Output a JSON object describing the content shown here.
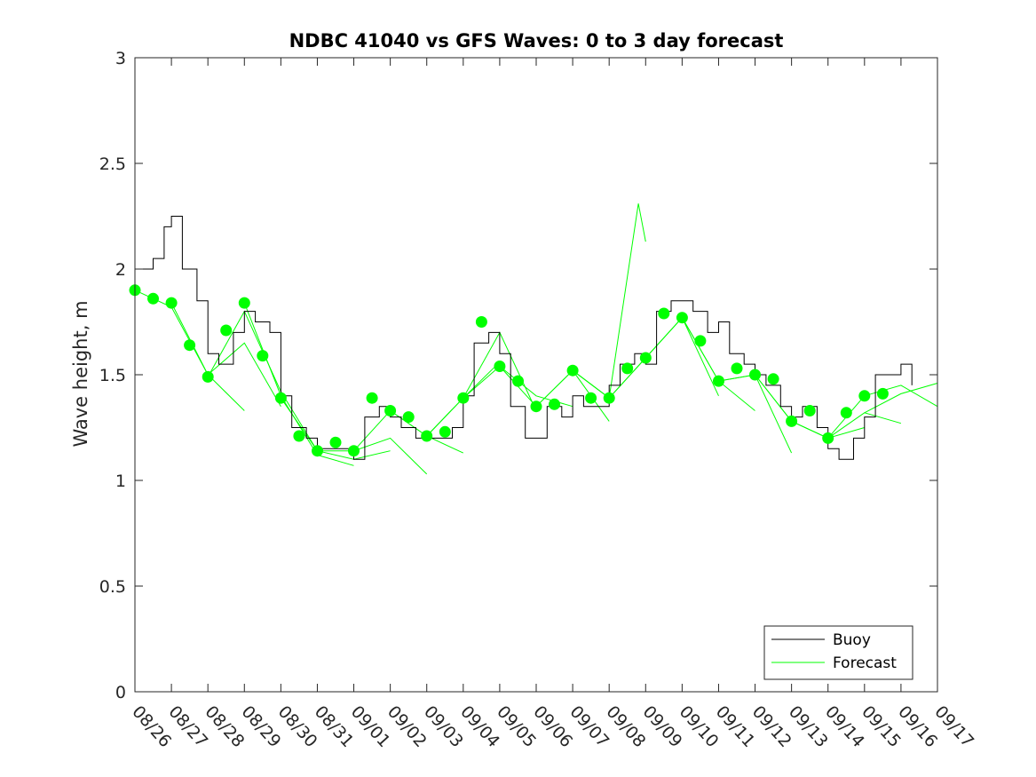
{
  "chart_data": {
    "type": "line",
    "title": "NDBC 41040 vs GFS Waves: 0 to 3 day forecast",
    "xlabel": "",
    "ylabel": "Wave height, m",
    "xlim": [
      0,
      22
    ],
    "ylim": [
      0,
      3
    ],
    "yticks": [
      0,
      0.5,
      1,
      1.5,
      2,
      2.5,
      3
    ],
    "ytick_labels": [
      "0",
      "0.5",
      "1",
      "1.5",
      "2",
      "2.5",
      "3"
    ],
    "xtick_labels": [
      "08/26",
      "08/27",
      "08/28",
      "08/29",
      "08/30",
      "08/31",
      "09/01",
      "09/02",
      "09/03",
      "09/04",
      "09/05",
      "09/06",
      "09/07",
      "09/08",
      "09/09",
      "09/10",
      "09/11",
      "09/12",
      "09/13",
      "09/14",
      "09/15",
      "09/16",
      "09/17"
    ],
    "grid": false,
    "legend_position": "bottom-right",
    "legend": [
      "Buoy",
      "Forecast"
    ],
    "colors": {
      "buoy": "#000000",
      "forecast": "#00ff00",
      "axis": "#262626"
    },
    "buoy": {
      "name": "Buoy",
      "x": [
        0,
        0.5,
        0.8,
        1.0,
        1.3,
        1.7,
        2.0,
        2.3,
        2.7,
        3.0,
        3.3,
        3.7,
        4.0,
        4.3,
        4.7,
        5.0,
        5.3,
        5.7,
        6.0,
        6.3,
        6.7,
        7.0,
        7.3,
        7.7,
        8.0,
        8.3,
        8.7,
        9.0,
        9.3,
        9.7,
        10.0,
        10.3,
        10.7,
        11.0,
        11.3,
        11.7,
        12.0,
        12.3,
        12.7,
        13.0,
        13.3,
        13.7,
        14.0,
        14.3,
        14.7,
        15.0,
        15.3,
        15.7,
        16.0,
        16.3,
        16.7,
        17.0,
        17.3,
        17.7,
        18.0,
        18.3,
        18.7,
        19.0,
        19.3,
        19.7,
        20.0,
        20.3,
        20.7,
        21.0,
        21.3
      ],
      "y": [
        2.0,
        2.05,
        2.2,
        2.25,
        2.0,
        1.85,
        1.6,
        1.55,
        1.7,
        1.8,
        1.75,
        1.7,
        1.4,
        1.25,
        1.2,
        1.15,
        1.15,
        1.15,
        1.1,
        1.3,
        1.35,
        1.3,
        1.25,
        1.2,
        1.2,
        1.2,
        1.25,
        1.4,
        1.65,
        1.7,
        1.6,
        1.35,
        1.2,
        1.2,
        1.35,
        1.3,
        1.4,
        1.35,
        1.35,
        1.45,
        1.55,
        1.6,
        1.55,
        1.8,
        1.85,
        1.85,
        1.8,
        1.7,
        1.75,
        1.6,
        1.55,
        1.5,
        1.45,
        1.35,
        1.3,
        1.35,
        1.25,
        1.15,
        1.1,
        1.2,
        1.3,
        1.5,
        1.5,
        1.55,
        1.45
      ]
    },
    "forecast_markers": {
      "name": "Forecast",
      "x": [
        0,
        0.5,
        1.0,
        1.5,
        2.0,
        2.5,
        3.0,
        3.5,
        4.0,
        4.5,
        5.0,
        5.5,
        6.0,
        6.5,
        7.0,
        7.5,
        8.0,
        8.5,
        9.0,
        9.5,
        10.0,
        10.5,
        11.0,
        11.5,
        12.0,
        12.5,
        13.0,
        13.5,
        14.0,
        14.5,
        15.0,
        15.5,
        16.0,
        16.5,
        17.0,
        17.5,
        18.0,
        18.5,
        19.0,
        19.5,
        20.0,
        20.5
      ],
      "y": [
        1.9,
        1.86,
        1.84,
        1.64,
        1.49,
        1.71,
        1.84,
        1.59,
        1.39,
        1.21,
        1.14,
        1.18,
        1.14,
        1.39,
        1.33,
        1.3,
        1.21,
        1.23,
        1.39,
        1.75,
        1.54,
        1.47,
        1.35,
        1.36,
        1.52,
        1.39,
        1.39,
        1.53,
        1.58,
        1.79,
        1.77,
        1.66,
        1.47,
        1.53,
        1.5,
        1.48,
        1.28,
        1.33,
        1.2,
        1.32,
        1.4,
        1.41
      ]
    },
    "forecast_runs": [
      {
        "x": [
          0,
          1,
          2,
          3
        ],
        "y": [
          1.9,
          1.82,
          1.5,
          1.33
        ]
      },
      {
        "x": [
          1,
          2,
          3,
          4
        ],
        "y": [
          1.84,
          1.5,
          1.65,
          1.35
        ]
      },
      {
        "x": [
          2,
          3,
          4,
          5
        ],
        "y": [
          1.49,
          1.8,
          1.42,
          1.14
        ]
      },
      {
        "x": [
          3,
          4,
          5,
          6
        ],
        "y": [
          1.84,
          1.4,
          1.12,
          1.07
        ]
      },
      {
        "x": [
          4,
          5,
          6,
          7
        ],
        "y": [
          1.39,
          1.14,
          1.1,
          1.14
        ]
      },
      {
        "x": [
          5,
          6,
          7,
          8
        ],
        "y": [
          1.14,
          1.14,
          1.2,
          1.03
        ]
      },
      {
        "x": [
          6,
          7,
          8,
          9
        ],
        "y": [
          1.14,
          1.33,
          1.21,
          1.13
        ]
      },
      {
        "x": [
          7,
          8,
          9,
          10
        ],
        "y": [
          1.33,
          1.21,
          1.39,
          1.56
        ]
      },
      {
        "x": [
          8,
          9,
          10,
          11
        ],
        "y": [
          1.21,
          1.39,
          1.7,
          1.33
        ]
      },
      {
        "x": [
          9,
          10,
          11,
          12
        ],
        "y": [
          1.39,
          1.54,
          1.4,
          1.35
        ]
      },
      {
        "x": [
          10,
          11,
          12,
          13
        ],
        "y": [
          1.54,
          1.35,
          1.52,
          1.28
        ]
      },
      {
        "x": [
          11,
          12,
          13,
          14
        ],
        "y": [
          1.35,
          1.52,
          1.39,
          1.58
        ]
      },
      {
        "x": [
          12,
          13,
          13.8,
          14
        ],
        "y": [
          1.52,
          1.39,
          2.31,
          2.13
        ]
      },
      {
        "x": [
          13,
          14,
          15,
          16
        ],
        "y": [
          1.39,
          1.58,
          1.77,
          1.4
        ]
      },
      {
        "x": [
          14,
          15,
          16,
          17
        ],
        "y": [
          1.58,
          1.77,
          1.47,
          1.33
        ]
      },
      {
        "x": [
          15,
          16,
          17,
          18
        ],
        "y": [
          1.77,
          1.47,
          1.5,
          1.13
        ]
      },
      {
        "x": [
          16,
          17,
          18,
          19
        ],
        "y": [
          1.47,
          1.5,
          1.28,
          1.2
        ]
      },
      {
        "x": [
          17,
          18,
          19,
          20
        ],
        "y": [
          1.5,
          1.28,
          1.2,
          1.25
        ]
      },
      {
        "x": [
          18,
          19,
          20,
          21
        ],
        "y": [
          1.28,
          1.2,
          1.32,
          1.27
        ]
      },
      {
        "x": [
          19,
          20,
          21,
          22
        ],
        "y": [
          1.2,
          1.4,
          1.45,
          1.35
        ]
      },
      {
        "x": [
          20,
          21,
          22
        ],
        "y": [
          1.32,
          1.41,
          1.46
        ]
      }
    ]
  }
}
